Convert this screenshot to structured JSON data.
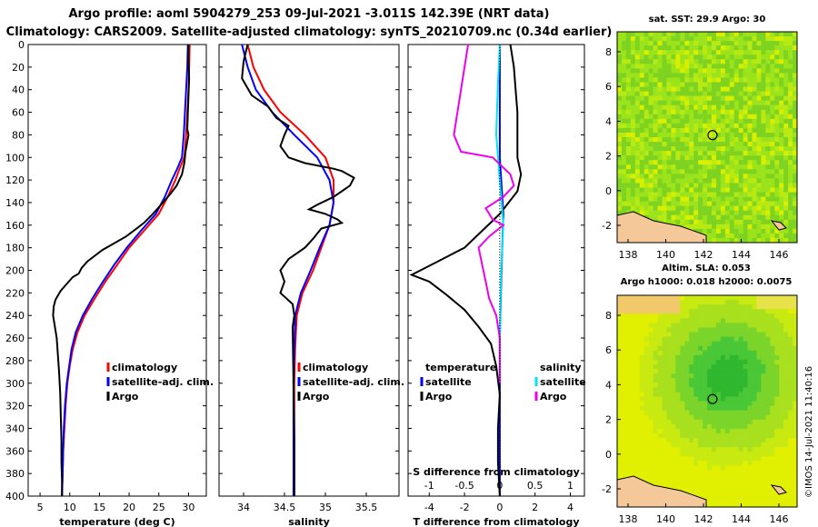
{
  "header": {
    "line1": "Argo profile: aoml 5904279_253 09-Jul-2021 -3.011S 142.39E (NRT data)",
    "line2": "Climatology: CARS2009. Satellite-adjusted climatology: synTS_20210709.nc (0.34d earlier)"
  },
  "colors": {
    "climatology": "#ff0000",
    "satellite": "#0000ff",
    "argo": "#000000",
    "sat_salinity": "#00e5ee",
    "argo_salinity_diff": "#ee00ee"
  },
  "chart_data": [
    {
      "type": "line",
      "id": "temperature",
      "xlabel": "temperature (deg C)",
      "xlim": [
        3,
        33
      ],
      "ylim": [
        400,
        0
      ],
      "yticks": [
        0,
        20,
        40,
        60,
        80,
        100,
        120,
        140,
        160,
        180,
        200,
        220,
        240,
        260,
        280,
        300,
        320,
        340,
        360,
        380,
        400
      ],
      "xticks": [
        5,
        10,
        15,
        20,
        25,
        30
      ],
      "legend": [
        "climatology",
        "satellite-adj. clim.",
        "Argo"
      ],
      "series": [
        {
          "name": "climatology",
          "color": "#ff0000",
          "points": [
            [
              30.2,
              0
            ],
            [
              30.1,
              20
            ],
            [
              30.0,
              40
            ],
            [
              29.8,
              60
            ],
            [
              29.6,
              80
            ],
            [
              29.3,
              100
            ],
            [
              28.5,
              110
            ],
            [
              27.8,
              120
            ],
            [
              26.5,
              135
            ],
            [
              25.0,
              150
            ],
            [
              22.5,
              165
            ],
            [
              20.0,
              180
            ],
            [
              18.0,
              195
            ],
            [
              16.0,
              210
            ],
            [
              14.2,
              225
            ],
            [
              12.5,
              240
            ],
            [
              11.3,
              255
            ],
            [
              10.5,
              270
            ],
            [
              10.0,
              285
            ],
            [
              9.6,
              300
            ],
            [
              9.3,
              320
            ],
            [
              9.1,
              340
            ],
            [
              8.9,
              360
            ],
            [
              8.8,
              380
            ],
            [
              8.7,
              400
            ]
          ]
        },
        {
          "name": "satellite-adj. clim.",
          "color": "#0000ff",
          "points": [
            [
              29.9,
              0
            ],
            [
              29.8,
              20
            ],
            [
              29.6,
              40
            ],
            [
              29.4,
              60
            ],
            [
              29.2,
              80
            ],
            [
              28.9,
              100
            ],
            [
              28.1,
              110
            ],
            [
              27.2,
              120
            ],
            [
              26.0,
              135
            ],
            [
              24.5,
              150
            ],
            [
              22.0,
              165
            ],
            [
              19.6,
              180
            ],
            [
              17.5,
              195
            ],
            [
              15.6,
              210
            ],
            [
              13.8,
              225
            ],
            [
              12.2,
              240
            ],
            [
              11.0,
              255
            ],
            [
              10.3,
              270
            ],
            [
              9.9,
              285
            ],
            [
              9.5,
              300
            ],
            [
              9.2,
              320
            ],
            [
              9.0,
              340
            ],
            [
              8.9,
              360
            ],
            [
              8.8,
              380
            ],
            [
              8.7,
              400
            ]
          ]
        },
        {
          "name": "Argo",
          "color": "#000000",
          "points": [
            [
              30.0,
              0
            ],
            [
              30.0,
              15
            ],
            [
              30.1,
              30
            ],
            [
              30.0,
              45
            ],
            [
              29.9,
              60
            ],
            [
              29.8,
              75
            ],
            [
              30.0,
              80
            ],
            [
              29.5,
              95
            ],
            [
              29.3,
              105
            ],
            [
              28.9,
              115
            ],
            [
              28.0,
              125
            ],
            [
              27.0,
              132
            ],
            [
              26.0,
              138
            ],
            [
              25.2,
              143
            ],
            [
              24.0,
              150
            ],
            [
              22.5,
              158
            ],
            [
              21.0,
              164
            ],
            [
              19.5,
              170
            ],
            [
              17.5,
              176
            ],
            [
              15.5,
              182
            ],
            [
              13.0,
              192
            ],
            [
              12.0,
              198
            ],
            [
              11.5,
              203
            ],
            [
              10.5,
              206
            ],
            [
              9.5,
              212
            ],
            [
              8.5,
              218
            ],
            [
              7.6,
              226
            ],
            [
              7.3,
              232
            ],
            [
              7.2,
              240
            ],
            [
              7.5,
              250
            ],
            [
              7.8,
              260
            ],
            [
              8.0,
              275
            ],
            [
              8.2,
              290
            ],
            [
              8.4,
              310
            ],
            [
              8.5,
              330
            ],
            [
              8.6,
              350
            ],
            [
              8.6,
              370
            ],
            [
              8.7,
              385
            ],
            [
              8.7,
              400
            ]
          ]
        }
      ]
    },
    {
      "type": "line",
      "id": "salinity",
      "xlabel": "salinity",
      "xlim": [
        33.7,
        35.9
      ],
      "ylim": [
        400,
        0
      ],
      "xticks": [
        34,
        34.5,
        35,
        35.5
      ],
      "legend": [
        "climatology",
        "satellite-adj. clim.",
        "Argo"
      ],
      "series": [
        {
          "name": "climatology",
          "color": "#ff0000",
          "points": [
            [
              34.05,
              0
            ],
            [
              34.12,
              20
            ],
            [
              34.25,
              40
            ],
            [
              34.45,
              60
            ],
            [
              34.75,
              80
            ],
            [
              35.0,
              100
            ],
            [
              35.1,
              120
            ],
            [
              35.1,
              140
            ],
            [
              35.05,
              160
            ],
            [
              34.95,
              180
            ],
            [
              34.85,
              200
            ],
            [
              34.72,
              220
            ],
            [
              34.65,
              240
            ],
            [
              34.63,
              270
            ],
            [
              34.62,
              300
            ],
            [
              34.62,
              340
            ],
            [
              34.62,
              400
            ]
          ]
        },
        {
          "name": "satellite-adj. clim.",
          "color": "#0000ff",
          "points": [
            [
              33.98,
              0
            ],
            [
              34.05,
              20
            ],
            [
              34.15,
              40
            ],
            [
              34.35,
              60
            ],
            [
              34.62,
              80
            ],
            [
              34.9,
              100
            ],
            [
              35.05,
              120
            ],
            [
              35.1,
              140
            ],
            [
              35.05,
              160
            ],
            [
              34.93,
              180
            ],
            [
              34.82,
              200
            ],
            [
              34.7,
              220
            ],
            [
              34.63,
              240
            ],
            [
              34.62,
              270
            ],
            [
              34.61,
              300
            ],
            [
              34.61,
              340
            ],
            [
              34.61,
              400
            ]
          ]
        },
        {
          "name": "Argo",
          "color": "#000000",
          "points": [
            [
              34.05,
              0
            ],
            [
              34.0,
              15
            ],
            [
              33.98,
              30
            ],
            [
              34.1,
              45
            ],
            [
              34.3,
              55
            ],
            [
              34.4,
              65
            ],
            [
              34.55,
              72
            ],
            [
              34.5,
              80
            ],
            [
              34.45,
              90
            ],
            [
              34.55,
              100
            ],
            [
              34.75,
              105
            ],
            [
              35.1,
              110
            ],
            [
              35.2,
              112
            ],
            [
              35.35,
              118
            ],
            [
              35.3,
              125
            ],
            [
              35.1,
              135
            ],
            [
              34.9,
              142
            ],
            [
              34.8,
              146
            ],
            [
              35.0,
              150
            ],
            [
              35.15,
              155
            ],
            [
              35.2,
              158
            ],
            [
              34.95,
              163
            ],
            [
              34.85,
              172
            ],
            [
              34.75,
              180
            ],
            [
              34.55,
              190
            ],
            [
              34.45,
              200
            ],
            [
              34.5,
              210
            ],
            [
              34.45,
              220
            ],
            [
              34.6,
              230
            ],
            [
              34.62,
              240
            ],
            [
              34.6,
              250
            ],
            [
              34.61,
              300
            ],
            [
              34.62,
              350
            ],
            [
              34.62,
              400
            ]
          ]
        }
      ]
    },
    {
      "type": "line",
      "id": "difference",
      "xlabel": "T difference from climatology",
      "top_label": "S difference from climatology",
      "xlim": [
        -5.2,
        4.8
      ],
      "ylim": [
        400,
        0
      ],
      "xticks": [
        -4,
        -2,
        0,
        2,
        4
      ],
      "top_ticks": [
        -1,
        -0.5,
        0,
        0.5,
        1
      ],
      "legend_left_title": "temperature",
      "legend_right_title": "salinity",
      "legend_left": [
        "satellite",
        "Argo"
      ],
      "legend_right": [
        "satellite",
        "Argo"
      ],
      "series": [
        {
          "name": "T satellite",
          "color": "#0000ff",
          "points": [
            [
              0,
              0
            ],
            [
              0,
              100
            ],
            [
              0.2,
              150
            ],
            [
              0.1,
              200
            ],
            [
              0,
              260
            ],
            [
              0,
              400
            ]
          ]
        },
        {
          "name": "T Argo",
          "color": "#000000",
          "points": [
            [
              0.6,
              0
            ],
            [
              0.8,
              20
            ],
            [
              0.9,
              40
            ],
            [
              1.0,
              60
            ],
            [
              1.0,
              80
            ],
            [
              1.0,
              100
            ],
            [
              1.2,
              115
            ],
            [
              1.0,
              130
            ],
            [
              0.0,
              150
            ],
            [
              -1.0,
              165
            ],
            [
              -2.0,
              180
            ],
            [
              -3.5,
              192
            ],
            [
              -5.0,
              204
            ],
            [
              -4.0,
              210
            ],
            [
              -3.0,
              222
            ],
            [
              -2.0,
              235
            ],
            [
              -1.2,
              250
            ],
            [
              -0.5,
              265
            ],
            [
              -0.2,
              285
            ],
            [
              0.0,
              310
            ],
            [
              -0.1,
              340
            ],
            [
              -0.1,
              370
            ],
            [
              0.0,
              400
            ]
          ]
        },
        {
          "name": "S satellite",
          "color": "#00e5ee",
          "points": [
            [
              0,
              0
            ],
            [
              -0.03,
              40
            ],
            [
              -0.05,
              80
            ],
            [
              0.0,
              120
            ],
            [
              0.05,
              160
            ],
            [
              0.02,
              200
            ],
            [
              0.0,
              260
            ],
            [
              0.0,
              300
            ]
          ]
        },
        {
          "name": "S Argo",
          "color": "#ee00ee",
          "points": [
            [
              -0.45,
              0
            ],
            [
              -0.5,
              20
            ],
            [
              -0.55,
              40
            ],
            [
              -0.6,
              60
            ],
            [
              -0.65,
              80
            ],
            [
              -0.55,
              95
            ],
            [
              -0.1,
              100
            ],
            [
              0.15,
              115
            ],
            [
              0.2,
              125
            ],
            [
              0.05,
              135
            ],
            [
              -0.2,
              145
            ],
            [
              -0.1,
              155
            ],
            [
              0.05,
              160
            ],
            [
              -0.15,
              170
            ],
            [
              -0.3,
              180
            ],
            [
              -0.25,
              195
            ],
            [
              -0.2,
              210
            ],
            [
              -0.15,
              225
            ],
            [
              -0.05,
              240
            ],
            [
              0.0,
              260
            ],
            [
              0.0,
              280
            ],
            [
              0.0,
              300
            ]
          ]
        }
      ]
    }
  ],
  "maps": {
    "sst": {
      "title": "sat. SST: 29.9 Argo: 30",
      "xticks": [
        "138",
        "140",
        "142",
        "144",
        "146"
      ],
      "yticks": [
        "8",
        "6",
        "4",
        "2",
        "0",
        "-2"
      ]
    },
    "sla": {
      "title1": "Altim. SLA: 0.053",
      "title2": "Argo h1000: 0.018 h2000: 0.0075",
      "xticks": [
        "138",
        "140",
        "142",
        "144",
        "146"
      ],
      "yticks": [
        "8",
        "6",
        "4",
        "2",
        "0",
        "-2"
      ]
    },
    "credit": "©IMOS 14-Jul-2021 11:40:16"
  }
}
